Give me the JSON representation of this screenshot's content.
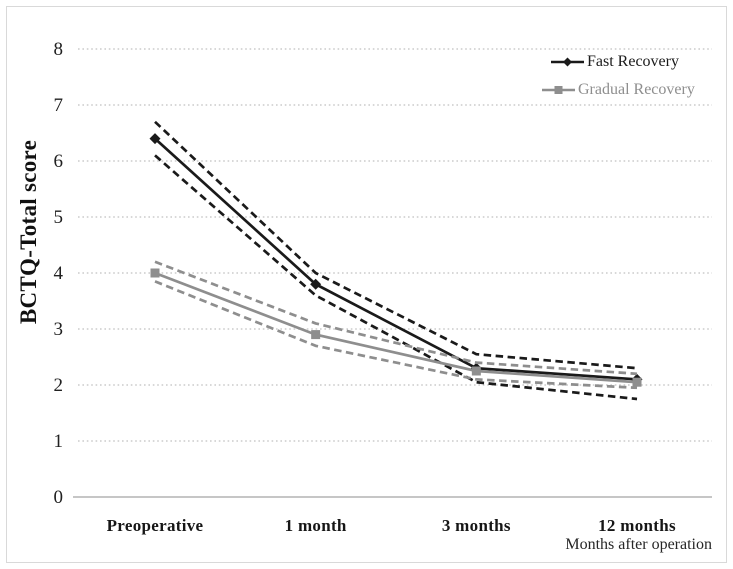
{
  "style": {
    "background": "#ffffff",
    "border_color": "#d9d9d9",
    "gridline_color": "#cbcbcb",
    "axis_line_color": "#b3b3b3",
    "fast_color": "#1a1a1a",
    "gradual_color": "#8e8e8e"
  },
  "chart_data": {
    "type": "line",
    "title": "",
    "ylabel": "BCTQ-Total score",
    "xlabel": "Months after operation",
    "categories": [
      "Preoperative",
      "1 month",
      "3 months",
      "12 months"
    ],
    "yticks": [
      0,
      1,
      2,
      3,
      4,
      5,
      6,
      7,
      8
    ],
    "ylim": [
      0,
      8
    ],
    "grid": "horizontal-dotted",
    "legend_position": "top-right-inside",
    "series": [
      {
        "name": "Fast Recovery",
        "color": "#1a1a1a",
        "marker": "diamond",
        "line_style": "solid",
        "values": [
          6.4,
          3.8,
          2.3,
          2.1
        ],
        "ci_upper": [
          6.7,
          4.0,
          2.55,
          2.3
        ],
        "ci_lower": [
          6.1,
          3.6,
          2.05,
          1.75
        ],
        "ci_style": "dashed"
      },
      {
        "name": "Gradual Recovery",
        "color": "#8e8e8e",
        "marker": "square",
        "line_style": "solid",
        "values": [
          4.0,
          2.9,
          2.25,
          2.05
        ],
        "ci_upper": [
          4.2,
          3.1,
          2.4,
          2.2
        ],
        "ci_lower": [
          3.85,
          2.7,
          2.1,
          1.95
        ],
        "ci_style": "dashed"
      }
    ]
  }
}
